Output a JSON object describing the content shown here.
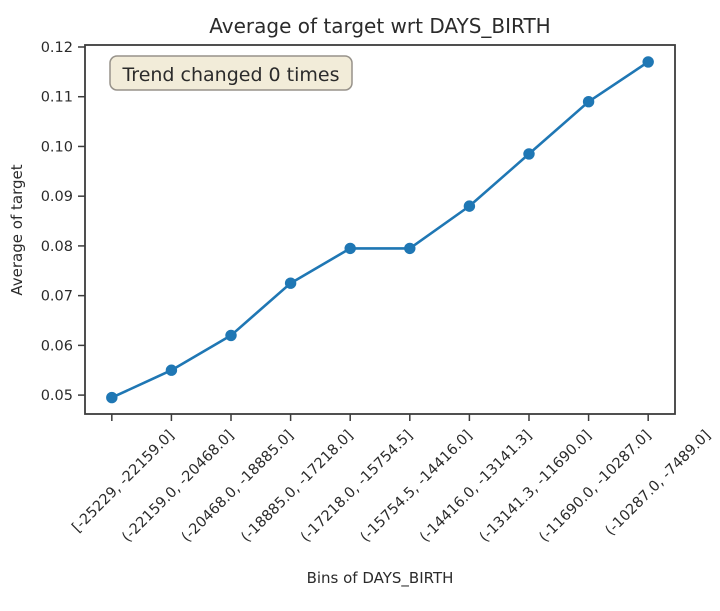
{
  "chart_data": {
    "type": "line",
    "title": "Average of target wrt DAYS_BIRTH",
    "xlabel": "Bins of DAYS_BIRTH",
    "ylabel": "Average of target",
    "annotation": "Trend changed 0 times",
    "categories": [
      "[-25229, -22159.0]",
      "(-22159.0, -20468.0]",
      "(-20468.0, -18885.0]",
      "(-18885.0, -17218.0]",
      "(-17218.0, -15754.5]",
      "(-15754.5, -14416.0]",
      "(-14416.0, -13141.3]",
      "(-13141.3, -11690.0]",
      "(-11690.0, -10287.0]",
      "(-10287.0, -7489.0]"
    ],
    "values": [
      0.0495,
      0.055,
      0.062,
      0.0725,
      0.0795,
      0.0795,
      0.088,
      0.0985,
      0.109,
      0.117
    ],
    "yticks": [
      0.05,
      0.06,
      0.07,
      0.08,
      0.09,
      0.1,
      0.11,
      0.12
    ],
    "ytick_labels": [
      "0.05",
      "0.06",
      "0.07",
      "0.08",
      "0.09",
      "0.10",
      "0.11",
      "0.12"
    ],
    "ylim": [
      0.0462,
      0.1204
    ],
    "grid": false,
    "legend_position": "none",
    "line_color": "#1f77b4",
    "marker": "circle",
    "axis_color": "#3c3c3c",
    "text_color": "#2b2b2b",
    "annotation_bg": "#f2ecd9",
    "annotation_border": "#97928a"
  }
}
